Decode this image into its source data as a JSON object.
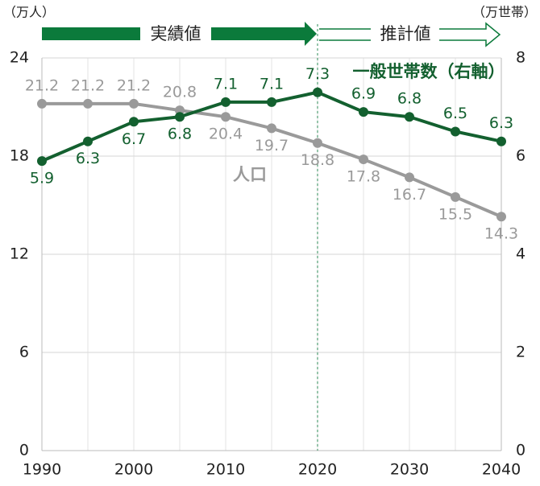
{
  "chart_data": {
    "type": "line",
    "y_unit": "（万人）",
    "y2_unit": "（万世帯）",
    "period_actual": "実績値",
    "period_projected": "推計値",
    "x": [
      1990,
      1995,
      2000,
      2005,
      2010,
      2015,
      2020,
      2025,
      2030,
      2035,
      2040
    ],
    "xlim": [
      1990,
      2040
    ],
    "xticks": [
      1990,
      2000,
      2010,
      2020,
      2030,
      2040
    ],
    "ylim": [
      0,
      24
    ],
    "yticks": [
      0,
      6,
      12,
      18,
      24
    ],
    "y2lim": [
      0,
      8
    ],
    "y2ticks": [
      0,
      2,
      4,
      6,
      8
    ],
    "grid": true,
    "series": [
      {
        "name": "人口",
        "color": "#9a9a9a",
        "values": [
          21.2,
          21.2,
          21.2,
          20.8,
          20.4,
          19.7,
          18.8,
          17.8,
          16.7,
          15.5,
          14.3
        ]
      },
      {
        "name": "一般世帯数（右軸）",
        "color": "#13602f",
        "axis": "y2",
        "values": [
          5.9,
          6.3,
          6.7,
          6.8,
          7.1,
          7.1,
          7.3,
          6.9,
          6.8,
          6.5,
          6.3
        ]
      }
    ]
  }
}
